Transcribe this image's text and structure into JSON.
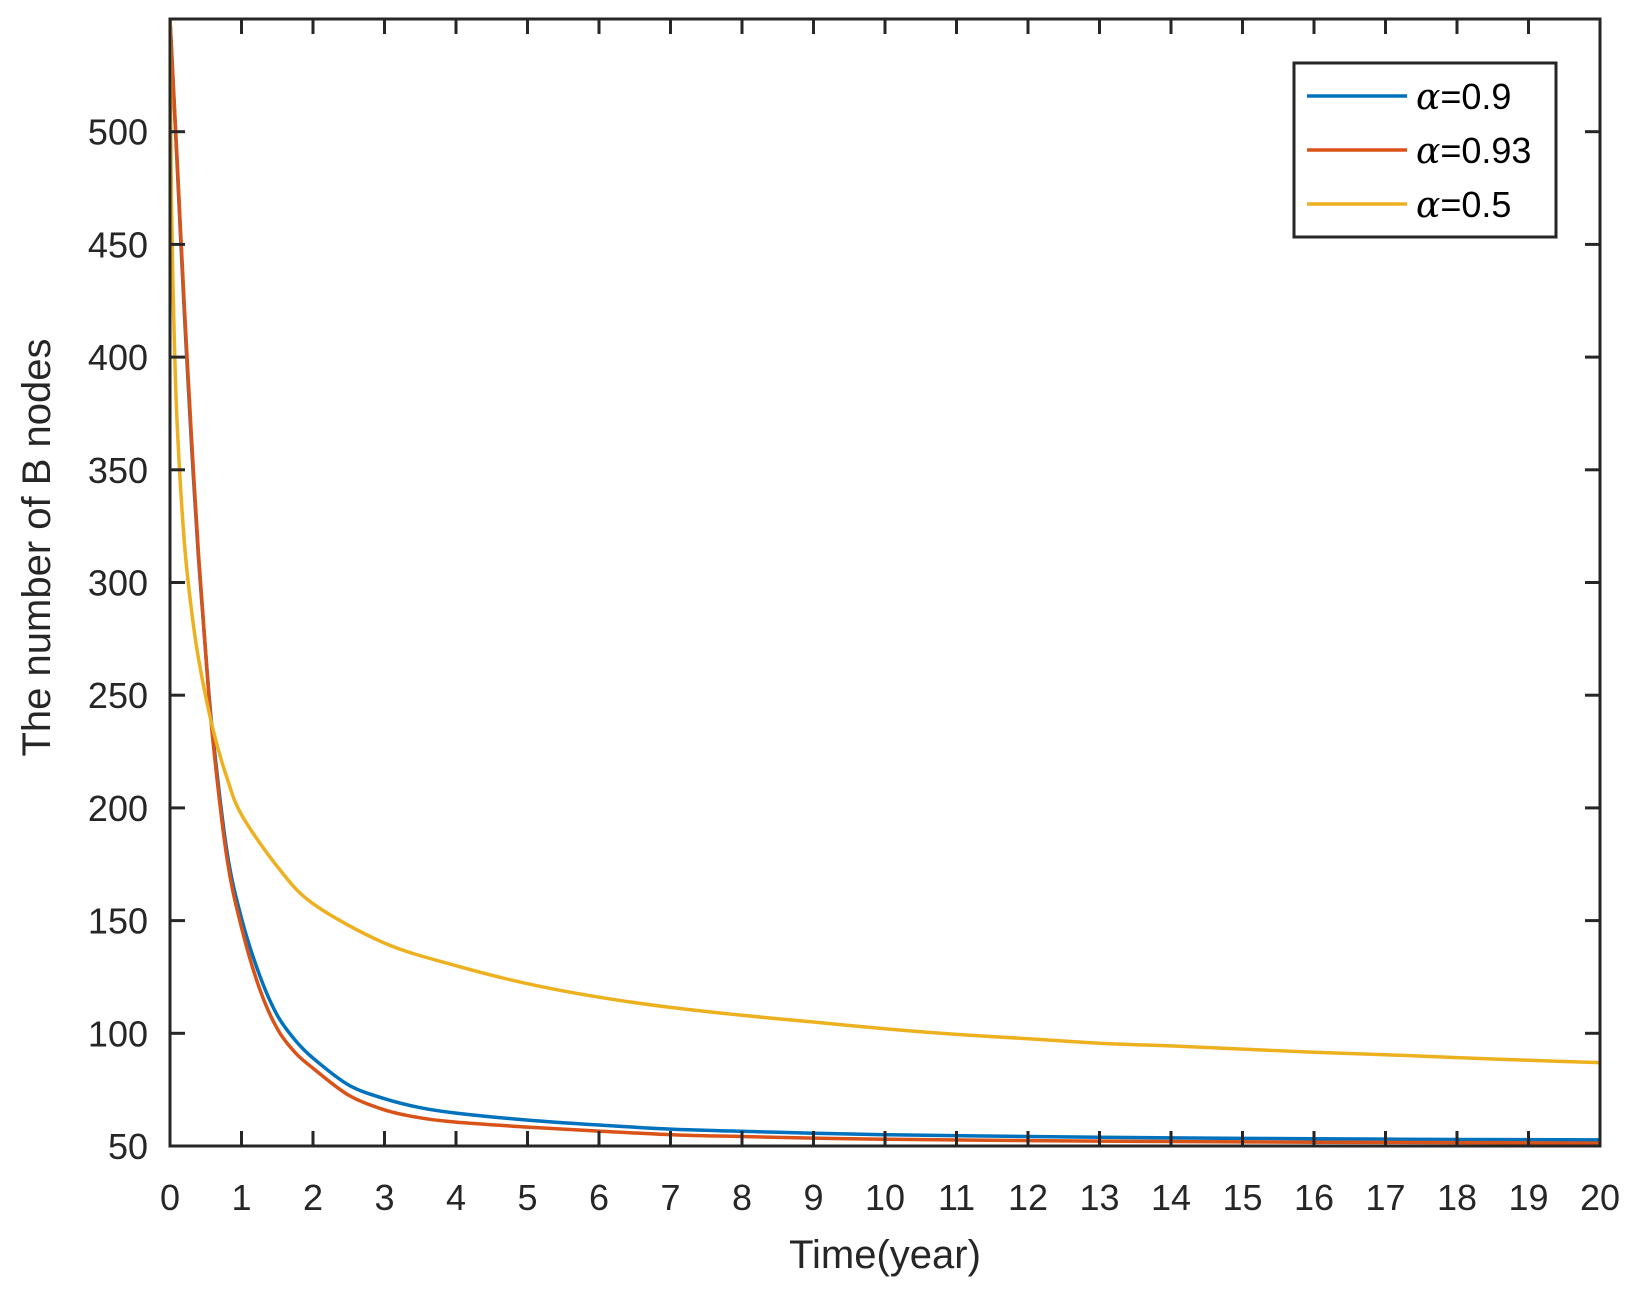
{
  "chart_data": {
    "type": "line",
    "title": "",
    "xlabel": "Time(year)",
    "ylabel": "The number of B nodes",
    "xlim": [
      0,
      20
    ],
    "ylim": [
      50,
      550
    ],
    "xticks": [
      0,
      1,
      2,
      3,
      4,
      5,
      6,
      7,
      8,
      9,
      10,
      11,
      12,
      13,
      14,
      15,
      16,
      17,
      18,
      19,
      20
    ],
    "yticks": [
      50,
      100,
      150,
      200,
      250,
      300,
      350,
      400,
      450,
      500
    ],
    "grid": false,
    "box": true,
    "legend_position": "northeast",
    "series": [
      {
        "name": "α=0.9",
        "alpha_value": "0.9",
        "color": "#0072BD",
        "x": [
          0,
          0.1,
          0.2,
          0.3,
          0.4,
          0.5,
          0.6,
          0.8,
          1,
          1.25,
          1.5,
          1.75,
          2,
          2.5,
          3,
          3.5,
          4,
          5,
          6,
          7,
          8,
          9,
          10,
          12,
          14,
          16,
          18,
          20
        ],
        "y": [
          550,
          485,
          420,
          362,
          310,
          268,
          232,
          180,
          151,
          126,
          108,
          97,
          89,
          77,
          71,
          67,
          64.6,
          61.5,
          59.3,
          57.5,
          56.5,
          55.7,
          55,
          54.2,
          53.6,
          53.2,
          52.9,
          52.7
        ]
      },
      {
        "name": "α=0.93",
        "alpha_value": "0.93",
        "color": "#D95319",
        "x": [
          0,
          0.1,
          0.2,
          0.3,
          0.4,
          0.5,
          0.6,
          0.8,
          1,
          1.25,
          1.5,
          1.75,
          2,
          2.5,
          3,
          3.5,
          4,
          5,
          6,
          7,
          8,
          9,
          10,
          12,
          14,
          16,
          18,
          20
        ],
        "y": [
          550,
          487,
          423,
          365,
          312,
          268,
          230,
          177,
          147,
          120,
          102,
          91.5,
          84.5,
          72.5,
          66,
          62.5,
          60.6,
          58.4,
          56.6,
          55,
          54.2,
          53.5,
          53,
          52.4,
          52,
          51.7,
          51.5,
          51.3
        ]
      },
      {
        "name": "α=0.5",
        "alpha_value": "0.5",
        "color": "#EDB120",
        "x": [
          0,
          0.02,
          0.05,
          0.1,
          0.2,
          0.3,
          0.4,
          0.6,
          0.8,
          1,
          1.5,
          2,
          3,
          4,
          5,
          6,
          7,
          8,
          9,
          10,
          11,
          12,
          13,
          14,
          15,
          16,
          17,
          18,
          19,
          20
        ],
        "y": [
          550,
          470,
          420,
          370,
          318,
          288,
          266,
          235,
          213,
          197,
          174,
          157.5,
          140,
          130,
          122,
          116,
          111.5,
          108,
          105,
          102,
          99.5,
          97.6,
          95.6,
          94.4,
          93,
          91.6,
          90.5,
          89.2,
          88,
          87
        ]
      }
    ]
  }
}
